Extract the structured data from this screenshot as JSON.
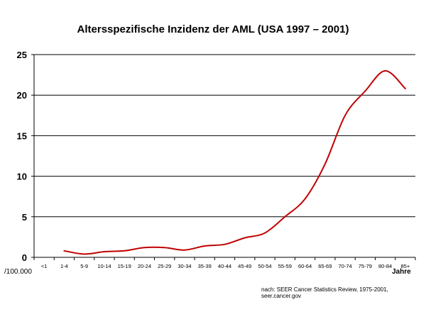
{
  "chart_data": {
    "type": "line",
    "title": "Altersspezifische Inzidenz der AML (USA 1997 – 2001)",
    "xlabel": "Jahre",
    "ylabel": "/100.000",
    "categories": [
      "<1",
      "1-4",
      "5-9",
      "10-14",
      "15-19",
      "20-24",
      "25-29",
      "30-34",
      "35-39",
      "40-44",
      "45-49",
      "50-54",
      "55-59",
      "60-64",
      "65-69",
      "70-74",
      "75-79",
      "80-84",
      "85+"
    ],
    "series": [
      {
        "values": [
          null,
          0.8,
          0.4,
          0.7,
          0.8,
          1.2,
          1.2,
          0.9,
          1.4,
          1.6,
          2.4,
          3.0,
          5.0,
          7.2,
          11.5,
          17.5,
          20.5,
          23.0,
          20.8
        ]
      }
    ],
    "ylim": [
      0,
      25
    ],
    "yticks": [
      0,
      5,
      10,
      15,
      20,
      25
    ],
    "grid": "horizontal",
    "line_color": "#c00000",
    "source": "nach: SEER Cancer Statistics Review, 1975-2001, seer.cancer.gov"
  }
}
